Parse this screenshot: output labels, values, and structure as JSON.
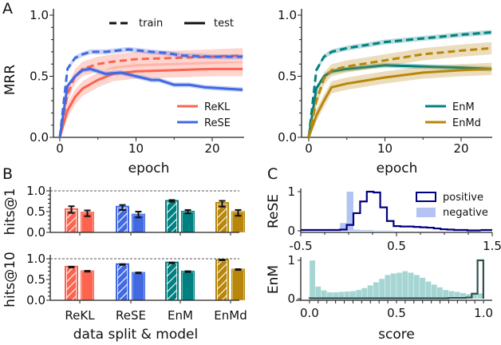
{
  "colors": {
    "ReKL": "#fc6450",
    "ReSE": "#4169e1",
    "EnM": "#008080",
    "EnMd": "#b8860b",
    "positive": "#000080",
    "negative": "#b3c3f3",
    "EnM_fill": "#a6d6d3",
    "EnM_pos": "#2f4f4f"
  },
  "panel_labels": [
    "A",
    "B",
    "C"
  ],
  "chart_data": [
    {
      "type": "line",
      "panel": "A-left",
      "xlabel": "epoch",
      "ylabel": "MRR",
      "xlim": [
        -0.8,
        24.2
      ],
      "ylim": [
        0,
        1
      ],
      "xticks": [
        0,
        10,
        20
      ],
      "yticks": [
        "0.0",
        "0.5",
        "1.0"
      ],
      "style_legend": [
        {
          "name": "train",
          "dash": true
        },
        {
          "name": "test",
          "dash": false
        }
      ],
      "series": [
        {
          "name": "ReKL",
          "split": "train",
          "band": 0.06,
          "x": [
            0,
            1,
            2,
            3,
            5,
            7,
            10,
            15,
            20,
            24
          ],
          "y": [
            0,
            0.35,
            0.5,
            0.56,
            0.6,
            0.62,
            0.64,
            0.65,
            0.66,
            0.67
          ]
        },
        {
          "name": "ReKL",
          "split": "test",
          "band": 0.06,
          "x": [
            0,
            1,
            2,
            3,
            5,
            7,
            10,
            15,
            20,
            24
          ],
          "y": [
            0,
            0.22,
            0.33,
            0.4,
            0.47,
            0.52,
            0.54,
            0.55,
            0.56,
            0.56
          ]
        },
        {
          "name": "ReSE",
          "split": "train",
          "band": 0.02,
          "x": [
            0,
            1,
            2,
            3,
            4,
            6,
            9,
            12,
            14,
            16,
            20,
            24
          ],
          "y": [
            0,
            0.56,
            0.65,
            0.68,
            0.7,
            0.7,
            0.72,
            0.7,
            0.69,
            0.67,
            0.66,
            0.66
          ]
        },
        {
          "name": "ReSE",
          "split": "test",
          "band": 0.02,
          "x": [
            0,
            1,
            2,
            3,
            4,
            6,
            8,
            10,
            12,
            13,
            15,
            17,
            19,
            24
          ],
          "y": [
            0,
            0.42,
            0.5,
            0.55,
            0.56,
            0.52,
            0.53,
            0.5,
            0.47,
            0.47,
            0.43,
            0.43,
            0.41,
            0.39
          ]
        }
      ],
      "legend": [
        "ReKL",
        "ReSE"
      ]
    },
    {
      "type": "line",
      "panel": "A-right",
      "xlabel": "epoch",
      "ylabel": "",
      "xlim": [
        -0.8,
        24.2
      ],
      "ylim": [
        0,
        1
      ],
      "xticks": [
        0,
        10,
        20
      ],
      "yticks": [
        "0.0",
        "0.5",
        "1.0"
      ],
      "series": [
        {
          "name": "EnM",
          "split": "train",
          "band": 0.02,
          "x": [
            0,
            1,
            2,
            3,
            5,
            10,
            15,
            20,
            24
          ],
          "y": [
            0,
            0.55,
            0.66,
            0.7,
            0.73,
            0.78,
            0.81,
            0.84,
            0.86
          ]
        },
        {
          "name": "EnM",
          "split": "test",
          "band": 0.02,
          "x": [
            0,
            1,
            2,
            3,
            5,
            10,
            15,
            20,
            24
          ],
          "y": [
            0,
            0.4,
            0.5,
            0.54,
            0.56,
            0.59,
            0.58,
            0.57,
            0.56
          ]
        },
        {
          "name": "EnMd",
          "split": "train",
          "band": 0.05,
          "x": [
            0,
            1,
            2,
            3,
            5,
            10,
            15,
            20,
            24
          ],
          "y": [
            0,
            0.3,
            0.48,
            0.55,
            0.58,
            0.63,
            0.68,
            0.71,
            0.73
          ]
        },
        {
          "name": "EnMd",
          "split": "test",
          "band": 0.05,
          "x": [
            0,
            1,
            2,
            3,
            5,
            10,
            15,
            20,
            24
          ],
          "y": [
            0,
            0.18,
            0.3,
            0.41,
            0.44,
            0.49,
            0.53,
            0.55,
            0.56
          ]
        }
      ],
      "legend": [
        "EnM",
        "EnMd"
      ]
    },
    {
      "type": "bar",
      "panel": "B",
      "xlabel": "data split & model",
      "categories": [
        "ReKL",
        "ReSE",
        "EnM",
        "EnMd"
      ],
      "ylim": [
        0,
        1
      ],
      "yticks": [
        "0.0",
        "0.5",
        "1.0"
      ],
      "reference_line": 1.0,
      "subplots": [
        {
          "ylabel": "hits@1",
          "train": [
            0.58,
            0.64,
            0.78,
            0.73
          ],
          "test": [
            0.5,
            0.45,
            0.52,
            0.51
          ],
          "train_err": [
            0.08,
            0.06,
            0.02,
            0.07
          ],
          "test_err": [
            0.07,
            0.07,
            0.04,
            0.07
          ],
          "train_center": [
            0.55,
            0.6,
            0.76,
            0.69
          ],
          "test_center": [
            0.46,
            0.43,
            0.5,
            0.47
          ]
        },
        {
          "ylabel": "hits@10",
          "train": [
            0.83,
            0.89,
            0.93,
            0.99
          ],
          "test": [
            0.72,
            0.68,
            0.71,
            0.76
          ],
          "train_err": [
            0.01,
            0.01,
            0.01,
            0.01
          ],
          "test_err": [
            0.01,
            0.01,
            0.01,
            0.01
          ],
          "train_center": [
            0.8,
            0.86,
            0.9,
            0.97
          ],
          "test_center": [
            0.7,
            0.66,
            0.69,
            0.74
          ]
        }
      ]
    },
    {
      "type": "histogram",
      "panel": "C-top",
      "ylabel": "ReSE",
      "xlim": [
        -0.5,
        1.5
      ],
      "xticks": [
        "-0.5",
        "0.5",
        "1.5"
      ],
      "yticks": [
        "0",
        "1"
      ],
      "legend": [
        "positive",
        "negative"
      ],
      "positive": {
        "edges_start": -0.16,
        "width": 0.07,
        "values": [
          0.02,
          0.03,
          0.15,
          0.45,
          0.75,
          1.0,
          0.98,
          0.6,
          0.25,
          0.12,
          0.11,
          0.11,
          0.1,
          0.09,
          0.08,
          0.06,
          0.04,
          0.03,
          0.02,
          0.02,
          0.01,
          0.01
        ]
      },
      "negative": {
        "edges_start": -0.16,
        "width": 0.07,
        "values": [
          0.03,
          0.2,
          1.0,
          0.03,
          0.02,
          0.02,
          0.01,
          0.01,
          0.01
        ]
      }
    },
    {
      "type": "histogram",
      "panel": "C-bottom",
      "ylabel": "EnM",
      "xlabel": "score",
      "xlim": [
        -0.05,
        1.05
      ],
      "xticks": [
        "0.0",
        "0.5",
        "1.0"
      ],
      "yticks": [
        "0",
        "1"
      ],
      "negative": {
        "edges_start": 0,
        "width": 0.0333,
        "values": [
          1.0,
          0.32,
          0.22,
          0.17,
          0.17,
          0.18,
          0.19,
          0.2,
          0.23,
          0.28,
          0.35,
          0.43,
          0.52,
          0.62,
          0.66,
          0.68,
          0.72,
          0.68,
          0.62,
          0.55,
          0.45,
          0.37,
          0.3,
          0.23,
          0.2,
          0.18,
          0.15,
          0.12,
          0.12,
          0.14
        ]
      },
      "positive": {
        "edges_start": 0,
        "width": 0.0333,
        "values": [
          0.01,
          0.01,
          0.01,
          0.01,
          0.01,
          0.01,
          0.01,
          0.01,
          0.01,
          0.01,
          0.01,
          0.01,
          0.01,
          0.01,
          0.01,
          0.01,
          0.01,
          0.01,
          0.01,
          0.01,
          0.01,
          0.01,
          0.01,
          0.01,
          0.02,
          0.02,
          0.02,
          0.03,
          0.13,
          1.0
        ]
      }
    }
  ]
}
